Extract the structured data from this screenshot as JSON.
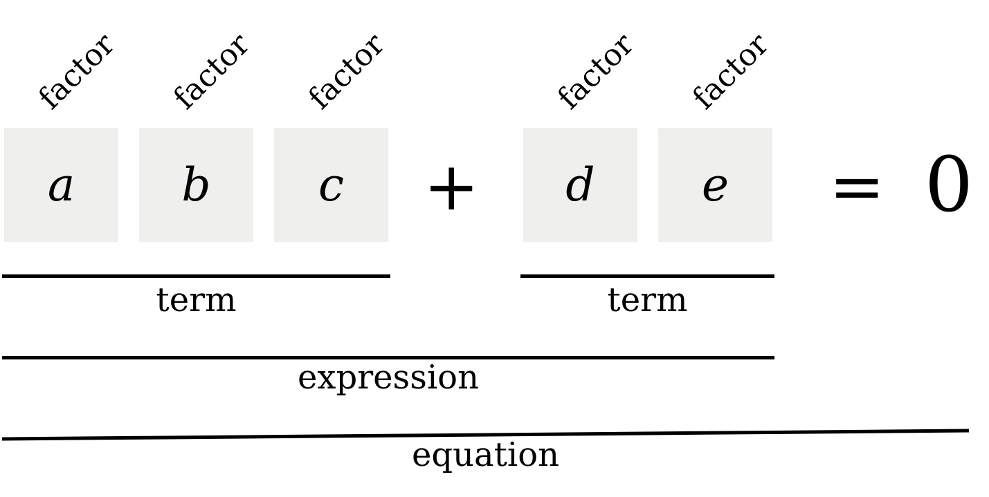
{
  "factors": {
    "label": "factor",
    "items": [
      {
        "variable": "a"
      },
      {
        "variable": "b"
      },
      {
        "variable": "c"
      },
      {
        "variable": "d"
      },
      {
        "variable": "e"
      }
    ]
  },
  "operators": {
    "plus": "+",
    "equals": "=",
    "rhs": "0"
  },
  "terms": [
    {
      "label": "term"
    },
    {
      "label": "term"
    }
  ],
  "expression": {
    "label": "expression"
  },
  "equation": {
    "label": "equation"
  },
  "colors": {
    "box_fill": "#efefed",
    "ink": "#000000",
    "background": "#ffffff"
  }
}
